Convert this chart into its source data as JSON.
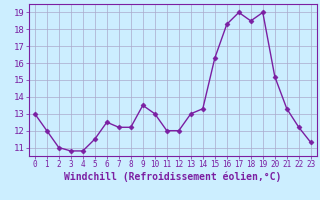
{
  "x": [
    0,
    1,
    2,
    3,
    4,
    5,
    6,
    7,
    8,
    9,
    10,
    11,
    12,
    13,
    14,
    15,
    16,
    17,
    18,
    19,
    20,
    21,
    22,
    23
  ],
  "y": [
    13.0,
    12.0,
    11.0,
    10.8,
    10.8,
    11.5,
    12.5,
    12.2,
    12.2,
    13.5,
    13.0,
    12.0,
    12.0,
    13.0,
    13.3,
    16.3,
    18.3,
    19.0,
    18.5,
    19.0,
    15.2,
    13.3,
    12.2,
    11.3
  ],
  "line_color": "#7b1fa2",
  "marker": "D",
  "markersize": 2.5,
  "linewidth": 1.0,
  "xlabel": "Windchill (Refroidissement éolien,°C)",
  "xlabel_fontsize": 7,
  "xlim": [
    -0.5,
    23.5
  ],
  "ylim": [
    10.5,
    19.5
  ],
  "yticks": [
    11,
    12,
    13,
    14,
    15,
    16,
    17,
    18,
    19
  ],
  "xticks": [
    0,
    1,
    2,
    3,
    4,
    5,
    6,
    7,
    8,
    9,
    10,
    11,
    12,
    13,
    14,
    15,
    16,
    17,
    18,
    19,
    20,
    21,
    22,
    23
  ],
  "xtick_fontsize": 5.5,
  "ytick_fontsize": 6.5,
  "background_color": "#cceeff",
  "grid_color": "#aaaacc",
  "grid_alpha": 1.0,
  "figure_bg": "#cceeff"
}
